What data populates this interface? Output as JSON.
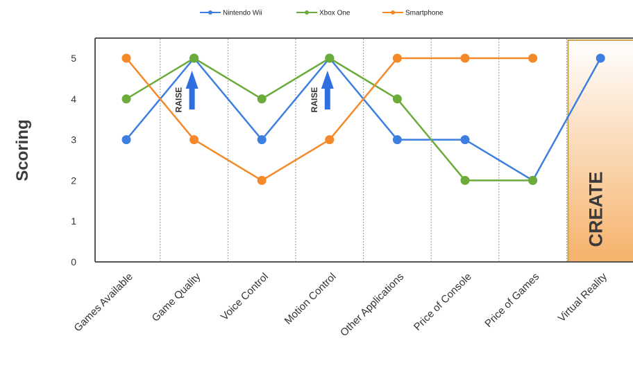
{
  "chart_data": {
    "type": "line",
    "title": "",
    "xlabel": "",
    "ylabel": "Scoring",
    "ylim": [
      0,
      5
    ],
    "yticks": [
      "0",
      "1",
      "2",
      "3",
      "4",
      "5"
    ],
    "categories": [
      "Games Available",
      "Game Quality",
      "Voice Control",
      "Motion Control",
      "Other Applications",
      "Price of Console",
      "Price of Games",
      "Virtual Reality"
    ],
    "series": [
      {
        "name": "Nintendo Wii",
        "color": "#3d7fe0",
        "values": [
          3,
          5,
          3,
          5,
          3,
          3,
          2,
          5
        ]
      },
      {
        "name": "Xbox One",
        "color": "#6aab3a",
        "values": [
          4,
          5,
          4,
          5,
          4,
          2,
          2,
          null
        ]
      },
      {
        "name": "Smartphone",
        "color": "#f5892a",
        "values": [
          5,
          3,
          2,
          3,
          5,
          5,
          5,
          null
        ]
      }
    ],
    "legend_position": "top-center",
    "grid": "vertical dashed separators",
    "annotations": {
      "raise": [
        {
          "label": "RAISE",
          "category": "Game Quality"
        },
        {
          "label": "RAISE",
          "category": "Motion Control"
        }
      ],
      "create": {
        "label": "CREATE",
        "category": "Virtual Reality"
      }
    },
    "colors": {
      "axis": "#555555",
      "arrow": "#2f6fe0",
      "create_fill_top": "#ffffff",
      "create_fill_bottom": "#f6b26b",
      "create_border": "#c9a44a"
    }
  }
}
